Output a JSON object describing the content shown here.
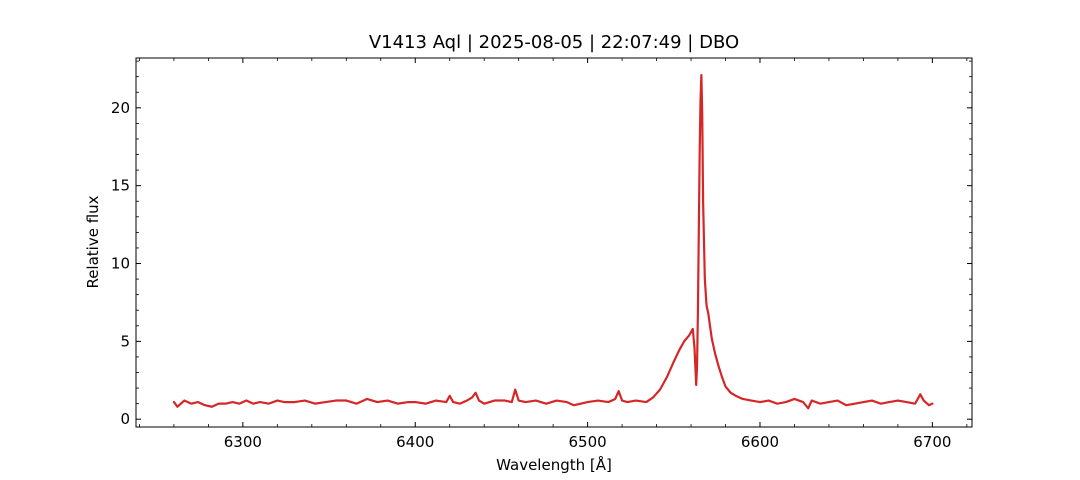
{
  "chart_data": {
    "type": "line",
    "title": "V1413 Aql | 2025-08-05 | 22:07:49 | DBO",
    "xlabel": "Wavelength [Å]",
    "ylabel": "Relative flux",
    "xlim": [
      6238,
      6723
    ],
    "ylim": [
      -0.5,
      23.2
    ],
    "xticks": [
      6300,
      6400,
      6500,
      6600,
      6700
    ],
    "yticks": [
      0,
      5,
      10,
      15,
      20
    ],
    "grid": false,
    "line_color": "#d62728",
    "series": [
      {
        "x": [
          6260,
          6262,
          6266,
          6270,
          6274,
          6278,
          6282,
          6286,
          6290,
          6294,
          6298,
          6302,
          6306,
          6310,
          6315,
          6320,
          6324,
          6330,
          6336,
          6342,
          6348,
          6354,
          6360,
          6366,
          6372,
          6378,
          6384,
          6390,
          6396,
          6400,
          6406,
          6412,
          6418,
          6420,
          6422,
          6426,
          6430,
          6433,
          6435,
          6437,
          6440,
          6446,
          6452,
          6456,
          6458,
          6460,
          6464,
          6470,
          6476,
          6482,
          6488,
          6492,
          6496,
          6500,
          6506,
          6512,
          6516,
          6518,
          6520,
          6523,
          6528,
          6534,
          6538,
          6542,
          6546,
          6550,
          6553,
          6556,
          6559,
          6561,
          6562,
          6563,
          6563.5,
          6564,
          6564.5,
          6565,
          6565.5,
          6566,
          6566.5,
          6567,
          6568,
          6569,
          6570,
          6571,
          6572,
          6574,
          6576,
          6578,
          6580,
          6583,
          6586,
          6590,
          6595,
          6600,
          6605,
          6610,
          6615,
          6620,
          6625,
          6628,
          6630,
          6635,
          6640,
          6645,
          6650,
          6655,
          6660,
          6665,
          6670,
          6675,
          6680,
          6685,
          6690,
          6693,
          6695,
          6698,
          6700
        ],
        "y": [
          1.1,
          0.8,
          1.2,
          1.0,
          1.1,
          0.9,
          0.8,
          1.0,
          1.0,
          1.1,
          1.0,
          1.2,
          1.0,
          1.1,
          1.0,
          1.2,
          1.1,
          1.1,
          1.2,
          1.0,
          1.1,
          1.2,
          1.2,
          1.0,
          1.3,
          1.1,
          1.2,
          1.0,
          1.1,
          1.1,
          1.0,
          1.2,
          1.1,
          1.5,
          1.1,
          1.0,
          1.2,
          1.4,
          1.7,
          1.2,
          1.0,
          1.2,
          1.2,
          1.1,
          1.9,
          1.2,
          1.1,
          1.2,
          1.0,
          1.2,
          1.1,
          0.9,
          1.0,
          1.1,
          1.2,
          1.1,
          1.3,
          1.8,
          1.2,
          1.1,
          1.2,
          1.1,
          1.4,
          1.9,
          2.7,
          3.7,
          4.4,
          5.0,
          5.4,
          5.8,
          4.6,
          2.2,
          3.5,
          7.0,
          12.0,
          17.0,
          20.5,
          22.1,
          19.5,
          14.0,
          9.0,
          7.3,
          6.8,
          6.0,
          5.2,
          4.2,
          3.4,
          2.7,
          2.1,
          1.7,
          1.5,
          1.3,
          1.2,
          1.1,
          1.2,
          1.0,
          1.1,
          1.3,
          1.1,
          0.7,
          1.2,
          1.0,
          1.1,
          1.2,
          0.9,
          1.0,
          1.1,
          1.2,
          1.0,
          1.1,
          1.2,
          1.1,
          1.0,
          1.6,
          1.2,
          0.9,
          1.0
        ]
      }
    ]
  }
}
